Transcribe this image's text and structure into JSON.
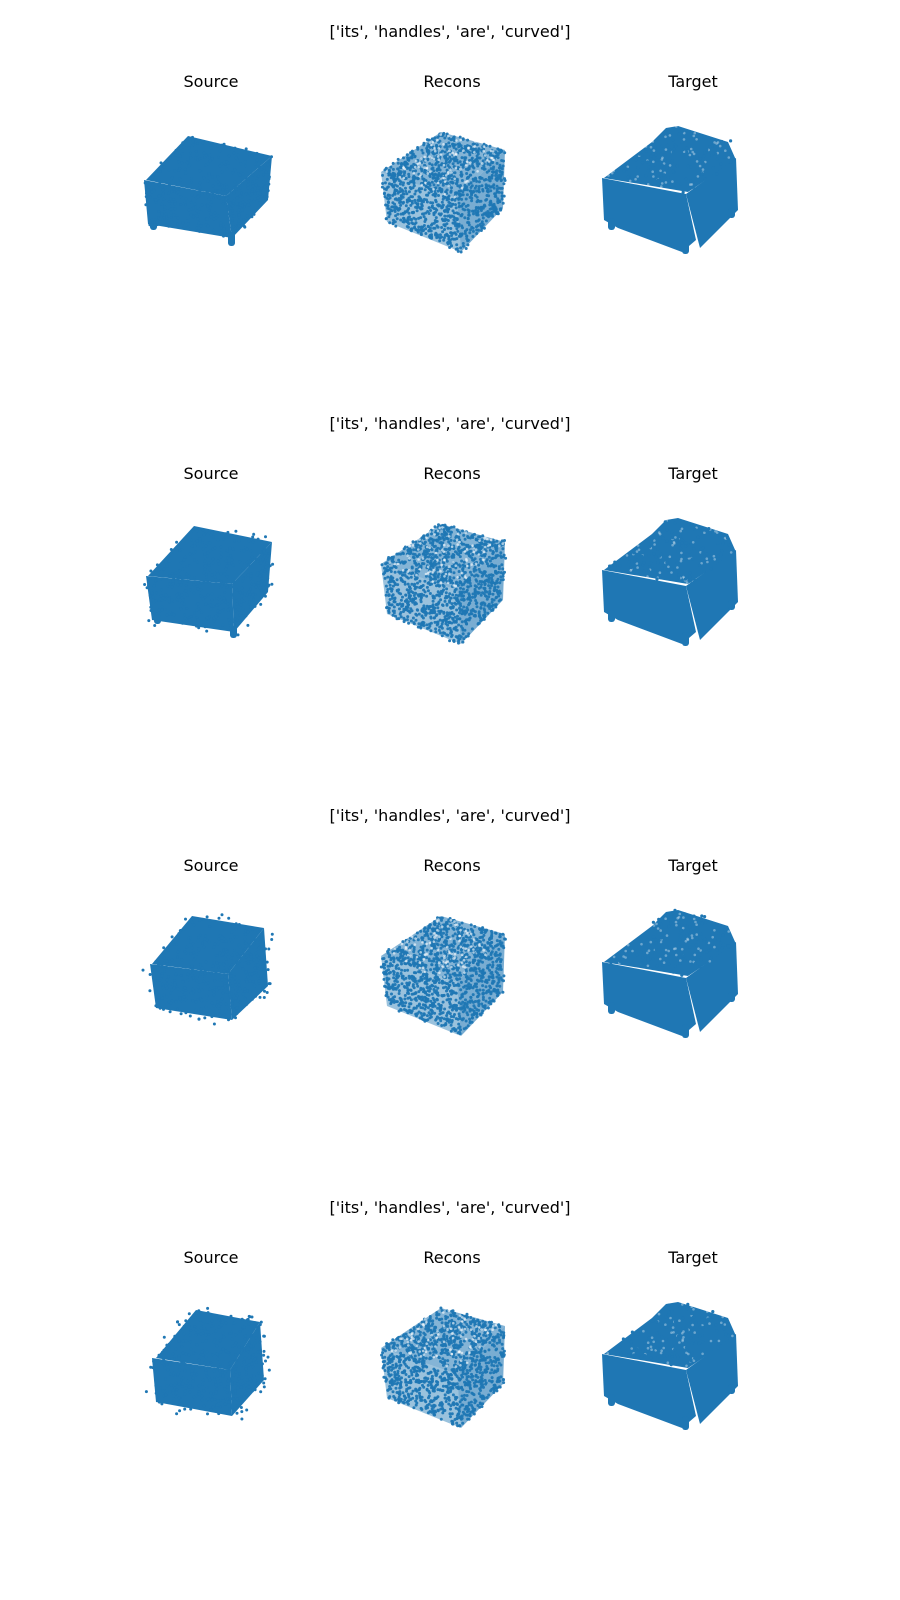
{
  "figure": {
    "point_color": "#1f77b4",
    "rows": [
      {
        "title": "['its', 'handles', 'are', 'curved']",
        "panels": [
          {
            "label": "Source",
            "shape": "source-a"
          },
          {
            "label": "Recons",
            "shape": "recons"
          },
          {
            "label": "Target",
            "shape": "target"
          }
        ]
      },
      {
        "title": "['its', 'handles', 'are', 'curved']",
        "panels": [
          {
            "label": "Source",
            "shape": "source-b"
          },
          {
            "label": "Recons",
            "shape": "recons"
          },
          {
            "label": "Target",
            "shape": "target"
          }
        ]
      },
      {
        "title": "['its', 'handles', 'are', 'curved']",
        "panels": [
          {
            "label": "Source",
            "shape": "source-c"
          },
          {
            "label": "Recons",
            "shape": "recons"
          },
          {
            "label": "Target",
            "shape": "target"
          }
        ]
      },
      {
        "title": "['its', 'handles', 'are', 'curved']",
        "panels": [
          {
            "label": "Source",
            "shape": "source-d"
          },
          {
            "label": "Recons",
            "shape": "recons"
          },
          {
            "label": "Target",
            "shape": "target"
          }
        ]
      }
    ]
  }
}
